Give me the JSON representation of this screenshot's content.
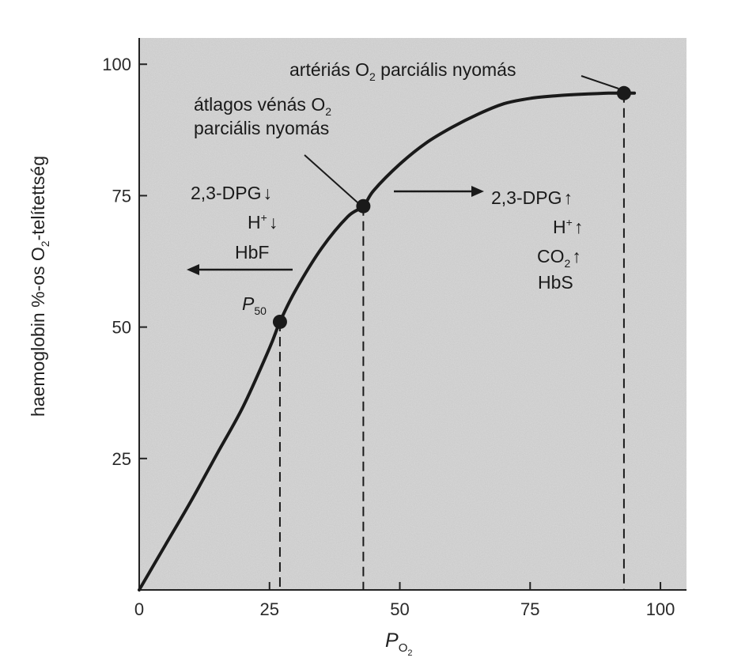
{
  "chart_data": {
    "type": "line",
    "title": "",
    "ylabel": "haemoglobin %-os O",
    "ylabel_sub": "2",
    "ylabel_rest": "-telítettség",
    "xlabel": "P",
    "xlabel_sub": "O",
    "xlabel_sub2": "2",
    "xlim": [
      0,
      105
    ],
    "ylim": [
      0,
      105
    ],
    "xticks": [
      0,
      25,
      50,
      75,
      100
    ],
    "yticks": [
      25,
      50,
      75,
      100
    ],
    "grid": false,
    "series": [
      {
        "x": [
          0,
          5,
          10,
          15,
          20,
          25,
          27,
          30,
          35,
          40,
          43,
          45,
          50,
          55,
          60,
          65,
          70,
          75,
          80,
          85,
          90,
          95
        ],
        "y": [
          0,
          8.5,
          17,
          26,
          35,
          46,
          51,
          57,
          65,
          71,
          73,
          76,
          81,
          85,
          88,
          90.5,
          92.5,
          93.5,
          94,
          94.3,
          94.5,
          94.5
        ]
      }
    ],
    "points": [
      {
        "x": 27,
        "y": 51,
        "label": "P50"
      },
      {
        "x": 43,
        "y": 73,
        "label": "átlagos vénás O2 parciális nyomás"
      },
      {
        "x": 93,
        "y": 94.5,
        "label": "artériás O2 parciális nyomás"
      }
    ],
    "annotations": {
      "arterial": {
        "pre": "artériás O",
        "sub": "2",
        "post": " parciális nyomás"
      },
      "venous_line1": {
        "pre": "átlagos vénás O",
        "sub": "2"
      },
      "venous_line2": "parciális nyomás",
      "p50": {
        "main": "P",
        "sub": "50"
      },
      "left_shift": [
        "2,3-DPG",
        "H",
        "HbF"
      ],
      "left_h_sup": "+",
      "right_shift": [
        "2,3-DPG",
        "H",
        "CO",
        "HbS"
      ],
      "right_h_sup": "+",
      "right_co_sub": "2",
      "arrow_down": "↓",
      "arrow_up": "↑"
    }
  }
}
